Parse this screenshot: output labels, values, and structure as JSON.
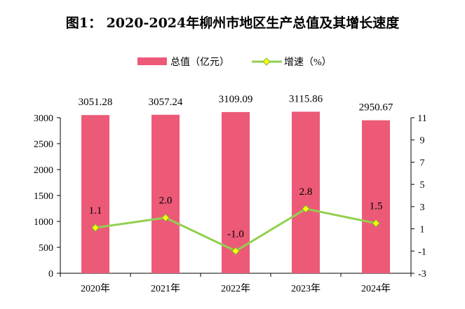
{
  "chart_data": {
    "type": "bar+line",
    "title": "图1：  2020-2024年柳州市地区生产总值及其增长速度",
    "categories": [
      "2020年",
      "2021年",
      "2022年",
      "2023年",
      "2024年"
    ],
    "series": [
      {
        "name": "总值（亿元）",
        "type": "bar",
        "axis": "left",
        "values": [
          3051.28,
          3057.24,
          3109.09,
          3115.86,
          2950.67
        ],
        "labels": [
          "3051.28",
          "3057.24",
          "3109.09",
          "3115.86",
          "2950.67"
        ],
        "color": "#EC5A78"
      },
      {
        "name": "增速（%）",
        "type": "line",
        "axis": "right",
        "values": [
          1.1,
          2.0,
          -1.0,
          2.8,
          1.5
        ],
        "labels": [
          "1.1",
          "2.0",
          "-1.0",
          "2.8",
          "1.5"
        ],
        "color": "#92D050",
        "marker_color": "#FFFF00"
      }
    ],
    "y_left": {
      "range": [
        0,
        3000
      ],
      "ticks": [
        "0",
        "500",
        "1000",
        "1500",
        "2000",
        "2500",
        "3000"
      ]
    },
    "y_right": {
      "range": [
        -3,
        11
      ],
      "ticks": [
        "-3",
        "-1",
        "1",
        "3",
        "5",
        "7",
        "9",
        "11"
      ]
    },
    "legend_position": "top",
    "grid": false
  }
}
